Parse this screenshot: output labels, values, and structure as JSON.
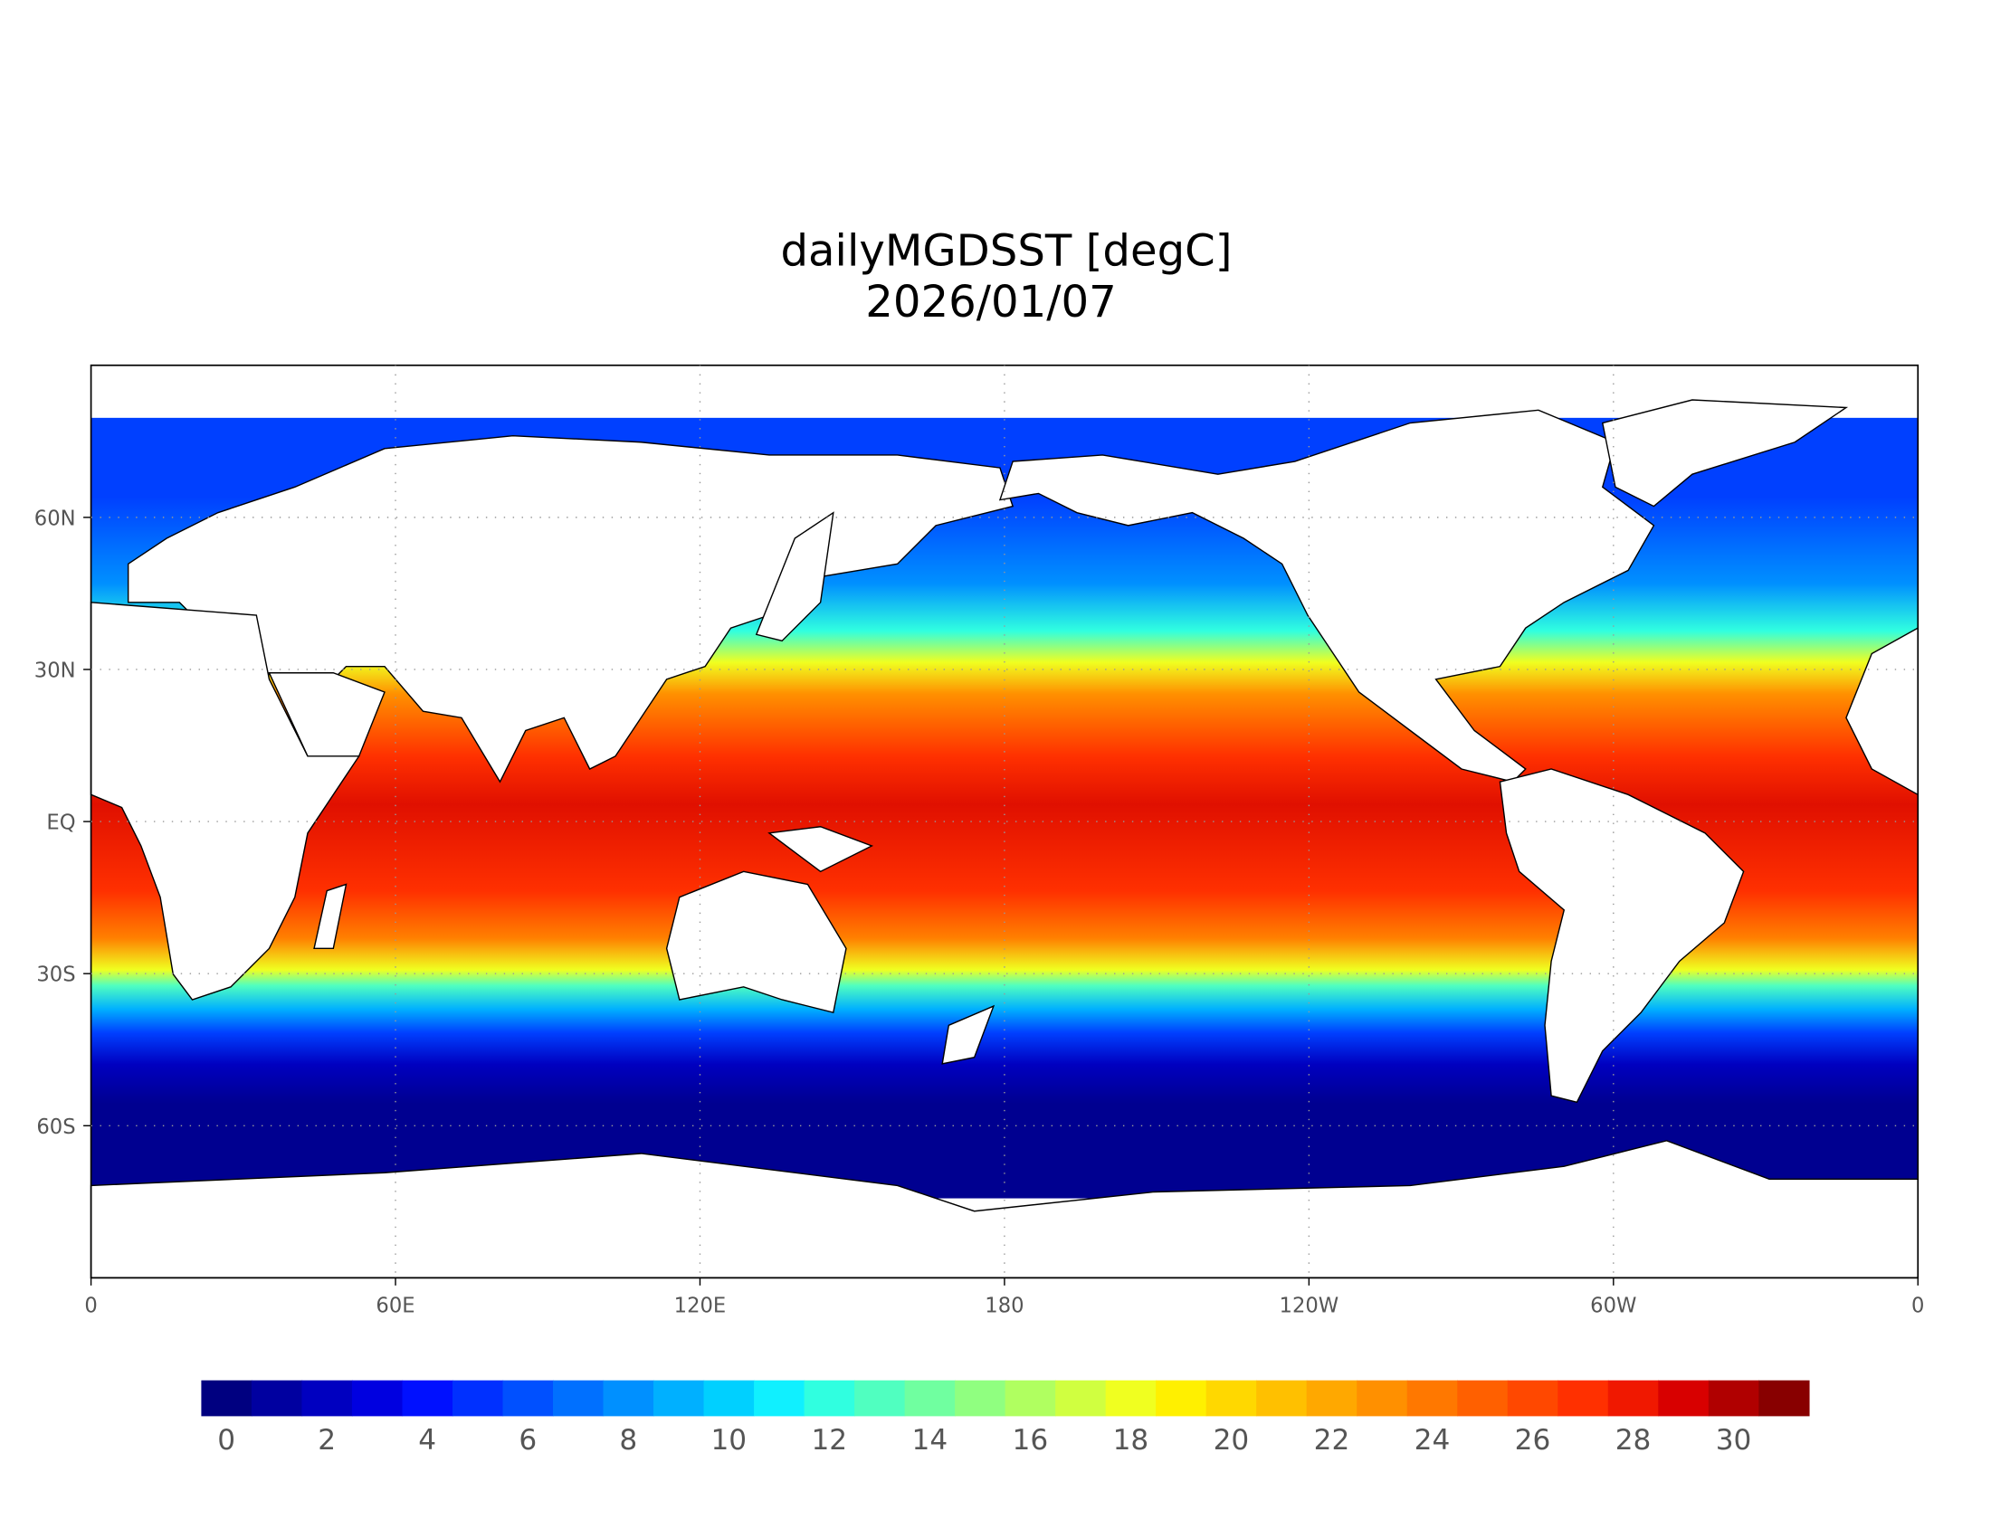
{
  "map": {
    "title": "dailyMGDSST [degC]",
    "date": "2026/01/07",
    "xlim": [
      0,
      360
    ],
    "ylim": [
      -90,
      90
    ],
    "xticks": [
      0,
      {
        "value": 60,
        "label": "60E"
      },
      {
        "value": 120,
        "label": "120E"
      },
      180,
      {
        "value": 240,
        "label": "120W"
      },
      {
        "value": 300,
        "label": "60W"
      },
      {
        "value": 360,
        "label": "0"
      }
    ],
    "yticks": [
      {
        "value": 60,
        "label": "60N"
      },
      {
        "value": 30,
        "label": "30N"
      },
      {
        "value": 0,
        "label": "EQ"
      },
      {
        "value": -30,
        "label": "30S"
      },
      {
        "value": -60,
        "label": "60S"
      }
    ],
    "grid": true
  },
  "colorbar": {
    "lim": [
      -0.5,
      31.5
    ],
    "ticks": [
      0,
      2,
      4,
      6,
      8,
      10,
      12,
      14,
      16,
      18,
      20,
      22,
      24,
      26,
      28,
      30
    ],
    "colors": [
      "#000080",
      "#0000a0",
      "#0000c0",
      "#0000e0",
      "#0010ff",
      "#0030ff",
      "#0050ff",
      "#0070ff",
      "#0090ff",
      "#00b0ff",
      "#00d0ff",
      "#10f0ff",
      "#30ffe0",
      "#50ffc0",
      "#70ffa0",
      "#90ff80",
      "#b0ff60",
      "#d0ff40",
      "#f0ff20",
      "#fff000",
      "#ffd800",
      "#ffc000",
      "#ffa800",
      "#ff9000",
      "#ff7800",
      "#ff6000",
      "#ff4800",
      "#ff3000",
      "#f01800",
      "#d80000",
      "#b00000",
      "#880000"
    ]
  }
}
